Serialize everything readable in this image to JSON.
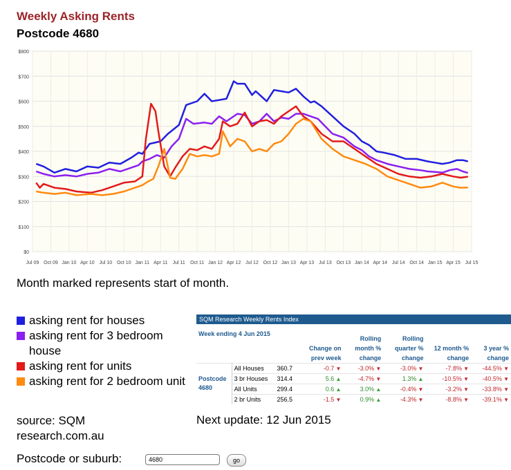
{
  "header": {
    "title": "Weekly Asking Rents",
    "subtitle": "Postcode 4680"
  },
  "note": "Month marked represents start of month.",
  "legend": [
    {
      "label": "asking rent for houses",
      "color": "#1f1fe0"
    },
    {
      "label": "asking rent for 3 bedroom house",
      "color": "#8a1ff0"
    },
    {
      "label": "asking rent for units",
      "color": "#e21a1a"
    },
    {
      "label": "asking rent for 2 bedroom unit",
      "color": "#ff8a10"
    }
  ],
  "source": "source: SQM research.com.au",
  "next_update": "Next update: 12 Jun 2015",
  "search": {
    "label": "Postcode or suburb:",
    "value": "4680",
    "button": "go"
  },
  "table": {
    "title": "SQM Research Weekly Rents Index",
    "week_label": "Week ending 4 Jun 2015",
    "columns": [
      "Change on prev week",
      "Rolling month % change",
      "Rolling quarter % change",
      "12 month % change",
      "3 year % change"
    ],
    "postcode": "Postcode 4680",
    "rows": [
      {
        "type": "All Houses",
        "value": "360.7",
        "changes": [
          "-0.7",
          "-3.0%",
          "-3.0%",
          "-7.8%",
          "-44.5%"
        ],
        "dirs": [
          "down",
          "down",
          "down",
          "down",
          "down"
        ]
      },
      {
        "type": "3 br Houses",
        "value": "314.4",
        "changes": [
          "5.6",
          "-4.7%",
          "1.3%",
          "-10.5%",
          "-40.5%"
        ],
        "dirs": [
          "up",
          "down",
          "up",
          "down",
          "down"
        ]
      },
      {
        "type": "All Units",
        "value": "299.4",
        "changes": [
          "0.6",
          "3.0%",
          "-0.4%",
          "-3.2%",
          "-33.8%"
        ],
        "dirs": [
          "up",
          "up",
          "down",
          "down",
          "down"
        ]
      },
      {
        "type": "2 br Units",
        "value": "256.5",
        "changes": [
          "-1.5",
          "0.9%",
          "-4.3%",
          "-8.8%",
          "-39.1%"
        ],
        "dirs": [
          "down",
          "up",
          "down",
          "down",
          "down"
        ]
      }
    ]
  },
  "chart_data": {
    "type": "line",
    "ylim": [
      0,
      800
    ],
    "yticks": [
      "$0",
      "$100",
      "$200",
      "$300",
      "$400",
      "$500",
      "$600",
      "$700",
      "$800"
    ],
    "xlim": [
      2009.5,
      2015.5
    ],
    "xticks": [
      "Jul 09",
      "Oct 09",
      "Jan 10",
      "Apr 10",
      "Jul 10",
      "Oct 10",
      "Jan 11",
      "Apr 11",
      "Jul 11",
      "Oct 11",
      "Jan 12",
      "Apr 12",
      "Jul 12",
      "Oct 12",
      "Jan 13",
      "Apr 13",
      "Jul 13",
      "Oct 13",
      "Jan 14",
      "Apr 14",
      "Jul 14",
      "Oct 14",
      "Jan 15",
      "Apr 15",
      "Jul 15"
    ],
    "grid": true,
    "series": [
      {
        "name": "asking rent for houses",
        "color": "#1f1fe0",
        "x": [
          2009.55,
          2009.65,
          2009.8,
          2009.95,
          2010.1,
          2010.25,
          2010.4,
          2010.55,
          2010.7,
          2010.85,
          2010.95,
          2011.0,
          2011.1,
          2011.25,
          2011.35,
          2011.5,
          2011.6,
          2011.75,
          2011.85,
          2011.95,
          2012.05,
          2012.15,
          2012.25,
          2012.3,
          2012.4,
          2012.5,
          2012.55,
          2012.7,
          2012.8,
          2012.9,
          2013.0,
          2013.1,
          2013.2,
          2013.3,
          2013.35,
          2013.45,
          2013.6,
          2013.75,
          2013.9,
          2014.0,
          2014.1,
          2014.2,
          2014.3,
          2014.45,
          2014.6,
          2014.75,
          2014.9,
          2015.0,
          2015.1,
          2015.2,
          2015.3,
          2015.38,
          2015.45
        ],
        "y": [
          350,
          340,
          315,
          330,
          320,
          340,
          335,
          355,
          350,
          375,
          395,
          390,
          430,
          440,
          470,
          505,
          585,
          600,
          630,
          600,
          605,
          610,
          680,
          670,
          670,
          625,
          640,
          600,
          645,
          640,
          635,
          650,
          620,
          595,
          600,
          580,
          540,
          500,
          470,
          440,
          425,
          400,
          395,
          385,
          370,
          370,
          360,
          355,
          350,
          355,
          365,
          365,
          360
        ]
      },
      {
        "name": "asking rent for 3 bedroom house",
        "color": "#8a1ff0",
        "x": [
          2009.55,
          2009.65,
          2009.8,
          2009.95,
          2010.1,
          2010.25,
          2010.4,
          2010.55,
          2010.7,
          2010.85,
          2010.95,
          2011.0,
          2011.1,
          2011.2,
          2011.3,
          2011.4,
          2011.5,
          2011.6,
          2011.7,
          2011.85,
          2011.95,
          2012.05,
          2012.15,
          2012.3,
          2012.4,
          2012.5,
          2012.6,
          2012.7,
          2012.8,
          2012.9,
          2013.0,
          2013.1,
          2013.2,
          2013.3,
          2013.4,
          2013.5,
          2013.6,
          2013.75,
          2013.9,
          2014.0,
          2014.1,
          2014.2,
          2014.35,
          2014.5,
          2014.65,
          2014.8,
          2014.9,
          2015.0,
          2015.1,
          2015.2,
          2015.3,
          2015.38,
          2015.45
        ],
        "y": [
          320,
          310,
          300,
          305,
          300,
          310,
          315,
          330,
          320,
          335,
          345,
          360,
          370,
          385,
          375,
          420,
          450,
          530,
          510,
          515,
          510,
          540,
          520,
          550,
          545,
          510,
          520,
          550,
          520,
          535,
          530,
          550,
          550,
          540,
          530,
          500,
          470,
          455,
          420,
          405,
          380,
          365,
          350,
          340,
          330,
          325,
          320,
          318,
          315,
          325,
          330,
          320,
          314
        ]
      },
      {
        "name": "asking rent for units",
        "color": "#e21a1a",
        "x": [
          2009.55,
          2009.6,
          2009.65,
          2009.8,
          2009.95,
          2010.1,
          2010.3,
          2010.45,
          2010.6,
          2010.75,
          2010.9,
          2011.0,
          2011.05,
          2011.12,
          2011.18,
          2011.22,
          2011.3,
          2011.38,
          2011.45,
          2011.55,
          2011.65,
          2011.75,
          2011.85,
          2011.95,
          2012.05,
          2012.1,
          2012.2,
          2012.3,
          2012.4,
          2012.5,
          2012.6,
          2012.7,
          2012.8,
          2012.9,
          2013.0,
          2013.1,
          2013.2,
          2013.3,
          2013.45,
          2013.6,
          2013.75,
          2013.9,
          2014.05,
          2014.2,
          2014.35,
          2014.5,
          2014.65,
          2014.8,
          2014.95,
          2015.1,
          2015.25,
          2015.35,
          2015.45
        ],
        "y": [
          275,
          255,
          270,
          255,
          250,
          240,
          235,
          245,
          260,
          275,
          280,
          300,
          450,
          590,
          560,
          480,
          340,
          300,
          335,
          380,
          410,
          405,
          420,
          410,
          450,
          520,
          500,
          510,
          555,
          500,
          520,
          525,
          510,
          540,
          560,
          580,
          540,
          520,
          470,
          440,
          440,
          410,
          380,
          350,
          330,
          310,
          300,
          295,
          300,
          310,
          300,
          295,
          299
        ]
      },
      {
        "name": "asking rent for 2 bedroom unit",
        "color": "#ff8a10",
        "x": [
          2009.55,
          2009.65,
          2009.8,
          2009.95,
          2010.1,
          2010.3,
          2010.45,
          2010.6,
          2010.75,
          2010.9,
          2011.0,
          2011.08,
          2011.15,
          2011.22,
          2011.3,
          2011.38,
          2011.45,
          2011.55,
          2011.65,
          2011.75,
          2011.85,
          2011.95,
          2012.05,
          2012.1,
          2012.2,
          2012.3,
          2012.4,
          2012.5,
          2012.6,
          2012.7,
          2012.8,
          2012.9,
          2013.0,
          2013.1,
          2013.2,
          2013.3,
          2013.45,
          2013.6,
          2013.75,
          2013.9,
          2014.05,
          2014.2,
          2014.35,
          2014.5,
          2014.65,
          2014.8,
          2014.95,
          2015.1,
          2015.25,
          2015.35,
          2015.45
        ],
        "y": [
          240,
          235,
          230,
          235,
          225,
          230,
          225,
          230,
          240,
          255,
          265,
          280,
          290,
          340,
          410,
          295,
          290,
          330,
          390,
          380,
          385,
          380,
          390,
          480,
          420,
          450,
          440,
          400,
          410,
          400,
          430,
          440,
          470,
          510,
          530,
          520,
          450,
          410,
          380,
          365,
          350,
          330,
          300,
          285,
          270,
          255,
          260,
          275,
          260,
          255,
          256
        ]
      }
    ]
  }
}
